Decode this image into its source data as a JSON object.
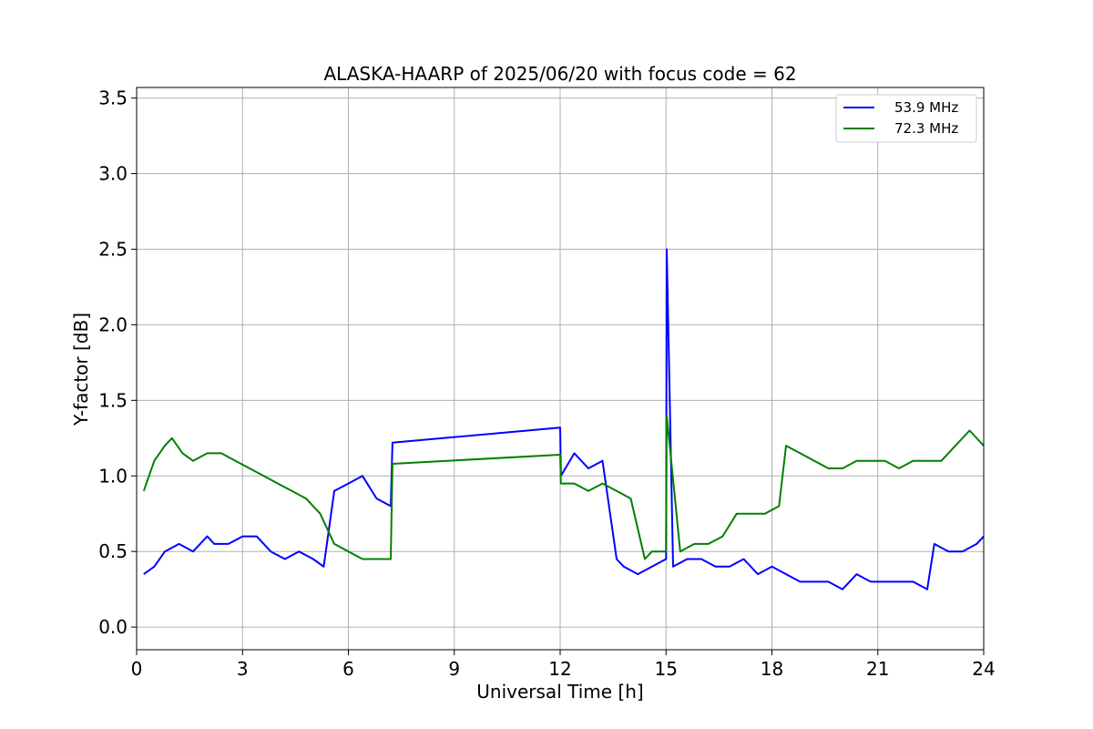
{
  "chart_data": {
    "type": "line",
    "title": "ALASKA-HAARP of 2025/06/20 with focus code = 62",
    "xlabel": "Universal Time [h]",
    "ylabel": "Y-factor [dB]",
    "xlim": [
      0,
      24
    ],
    "ylim": [
      -0.15,
      3.57
    ],
    "xticks": [
      0,
      3,
      6,
      9,
      12,
      15,
      18,
      21,
      24
    ],
    "xtick_labels": [
      "0",
      "3",
      "6",
      "9",
      "12",
      "15",
      "18",
      "21",
      "24"
    ],
    "yticks": [
      0.0,
      0.5,
      1.0,
      1.5,
      2.0,
      2.5,
      3.0,
      3.5
    ],
    "ytick_labels": [
      "0.0",
      "0.5",
      "1.0",
      "1.5",
      "2.0",
      "2.5",
      "3.0",
      "3.5"
    ],
    "grid": true,
    "legend_position": "top-right",
    "series": [
      {
        "name": "53.9 MHz",
        "color": "#0000ff",
        "x": [
          0.2,
          0.5,
          0.8,
          1.2,
          1.6,
          2.0,
          2.2,
          2.6,
          3.0,
          3.4,
          3.8,
          4.2,
          4.6,
          5.0,
          5.3,
          5.6,
          6.0,
          6.4,
          6.8,
          7.2,
          7.25,
          12.0,
          12.02,
          12.4,
          12.8,
          13.2,
          13.6,
          13.8,
          14.2,
          14.6,
          15.0,
          15.02,
          15.2,
          15.6,
          16.0,
          16.4,
          16.8,
          17.2,
          17.6,
          18.0,
          18.4,
          18.8,
          19.2,
          19.6,
          20.0,
          20.4,
          20.8,
          21.2,
          21.6,
          22.0,
          22.4,
          22.6,
          23.0,
          23.4,
          23.8,
          24.0
        ],
        "values": [
          0.35,
          0.4,
          0.5,
          0.55,
          0.5,
          0.6,
          0.55,
          0.55,
          0.6,
          0.6,
          0.5,
          0.45,
          0.5,
          0.45,
          0.4,
          0.9,
          0.95,
          1.0,
          0.85,
          0.8,
          1.22,
          1.32,
          1.0,
          1.15,
          1.05,
          1.1,
          0.45,
          0.4,
          0.35,
          0.4,
          0.45,
          2.5,
          0.4,
          0.45,
          0.45,
          0.4,
          0.4,
          0.45,
          0.35,
          0.4,
          0.35,
          0.3,
          0.3,
          0.3,
          0.25,
          0.35,
          0.3,
          0.3,
          0.3,
          0.3,
          0.25,
          0.55,
          0.5,
          0.5,
          0.55,
          0.6
        ]
      },
      {
        "name": "72.3 MHz",
        "color": "#008000",
        "x": [
          0.2,
          0.5,
          0.8,
          1.0,
          1.3,
          1.6,
          2.0,
          2.4,
          2.8,
          3.2,
          3.6,
          4.0,
          4.4,
          4.8,
          5.2,
          5.6,
          6.0,
          6.4,
          6.8,
          7.2,
          7.25,
          12.0,
          12.02,
          12.4,
          12.8,
          13.2,
          13.6,
          14.0,
          14.4,
          14.6,
          15.0,
          15.02,
          15.4,
          15.8,
          16.2,
          16.6,
          17.0,
          17.4,
          17.8,
          18.2,
          18.4,
          18.8,
          19.2,
          19.6,
          20.0,
          20.4,
          20.8,
          21.2,
          21.6,
          22.0,
          22.4,
          22.8,
          23.2,
          23.6,
          24.0
        ],
        "values": [
          0.9,
          1.1,
          1.2,
          1.25,
          1.15,
          1.1,
          1.15,
          1.15,
          1.1,
          1.05,
          1.0,
          0.95,
          0.9,
          0.85,
          0.75,
          0.55,
          0.5,
          0.45,
          0.45,
          0.45,
          1.08,
          1.14,
          0.95,
          0.95,
          0.9,
          0.95,
          0.9,
          0.85,
          0.45,
          0.5,
          0.5,
          1.4,
          0.5,
          0.55,
          0.55,
          0.6,
          0.75,
          0.75,
          0.75,
          0.8,
          1.2,
          1.15,
          1.1,
          1.05,
          1.05,
          1.1,
          1.1,
          1.1,
          1.05,
          1.1,
          1.1,
          1.1,
          1.2,
          1.3,
          1.2
        ]
      }
    ]
  }
}
